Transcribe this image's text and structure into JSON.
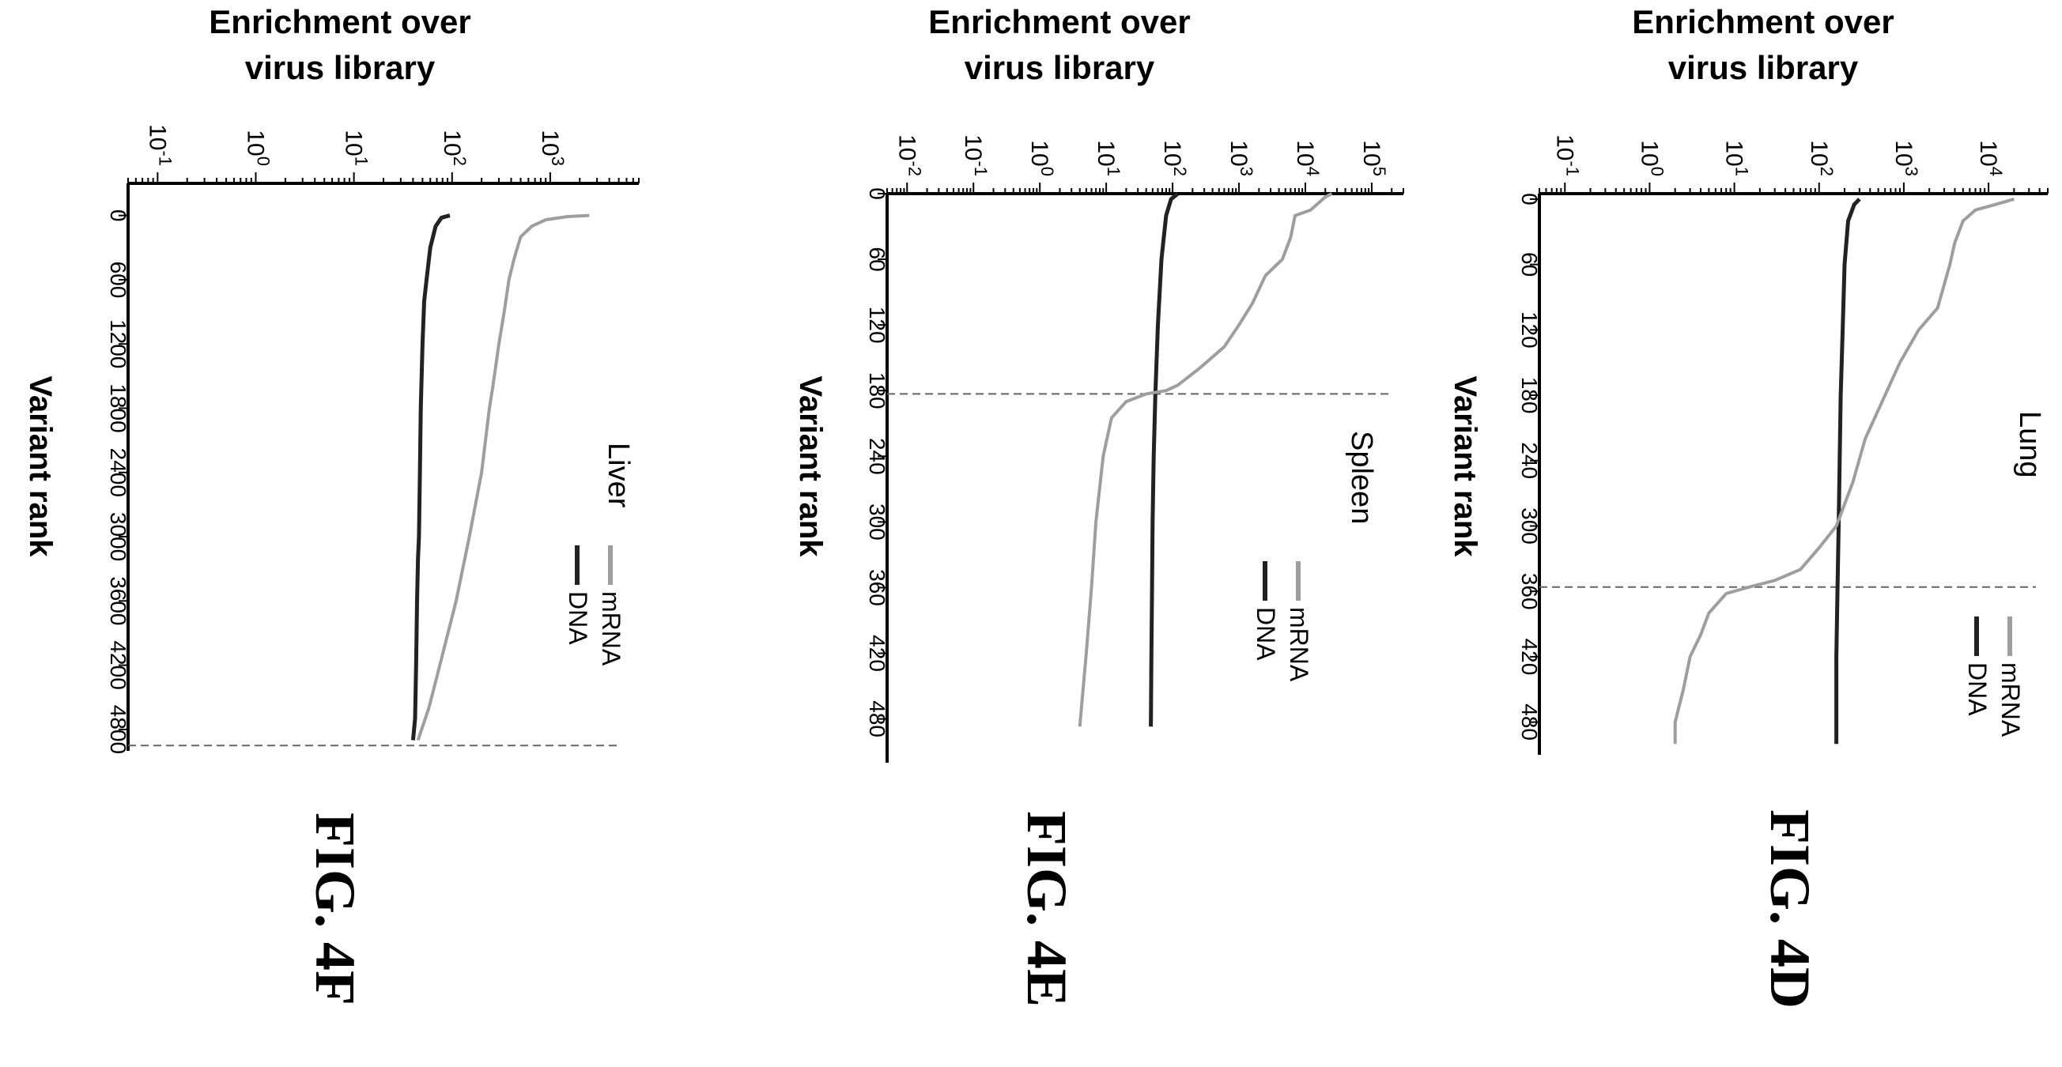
{
  "chart_data": [
    {
      "type": "line",
      "figure_label": "FIG. 4F",
      "panel_label": "Liver",
      "ylabel": "Enrichment over virus library",
      "xlabel": "Variant rank",
      "y_scale": "log",
      "ylim": [
        0.05,
        8000
      ],
      "y_ticks": [
        {
          "value": 0.1,
          "base": "10",
          "exp": "-1"
        },
        {
          "value": 1,
          "base": "10",
          "exp": "0"
        },
        {
          "value": 10,
          "base": "10",
          "exp": "1"
        },
        {
          "value": 100,
          "base": "10",
          "exp": "2"
        },
        {
          "value": 1000,
          "base": "10",
          "exp": "3"
        }
      ],
      "xlim": [
        -300,
        5000
      ],
      "x_ticks": [
        "0",
        "600",
        "1200",
        "1800",
        "2400",
        "3000",
        "3600",
        "4200",
        "4800"
      ],
      "x_tick_values": [
        0,
        600,
        1200,
        1800,
        2400,
        3000,
        3600,
        4200,
        4800
      ],
      "cutoff_rank": 4950,
      "legend": [
        "DNA",
        "mRNA"
      ],
      "legend_position": "bottom-right",
      "series": [
        {
          "name": "DNA",
          "color": "#222222",
          "x": [
            0,
            20,
            100,
            300,
            600,
            800,
            1200,
            1500,
            1800,
            2400,
            3000,
            3200,
            3600,
            4200,
            4700,
            4900
          ],
          "y": [
            95,
            78,
            68,
            60,
            55,
            52,
            50,
            49,
            48,
            47,
            46,
            45,
            44,
            43,
            42,
            40
          ]
        },
        {
          "name": "mRNA",
          "color": "#9e9e9e",
          "x": [
            0,
            10,
            40,
            100,
            200,
            400,
            600,
            900,
            1200,
            1600,
            1800,
            2400,
            3000,
            3600,
            4200,
            4600,
            4900
          ],
          "y": [
            2500,
            1500,
            900,
            650,
            500,
            430,
            380,
            340,
            300,
            260,
            240,
            200,
            150,
            110,
            75,
            58,
            45
          ]
        }
      ]
    },
    {
      "type": "line",
      "figure_label": "FIG. 4E",
      "panel_label": "Spleen",
      "ylabel": "Enrichment over virus library",
      "xlabel": "Variant rank",
      "y_scale": "log",
      "ylim": [
        0.005,
        300000
      ],
      "y_ticks": [
        {
          "value": 0.01,
          "base": "10",
          "exp": "-2"
        },
        {
          "value": 0.1,
          "base": "10",
          "exp": "-1"
        },
        {
          "value": 1,
          "base": "10",
          "exp": "0"
        },
        {
          "value": 10,
          "base": "10",
          "exp": "1"
        },
        {
          "value": 100,
          "base": "10",
          "exp": "2"
        },
        {
          "value": 1000,
          "base": "10",
          "exp": "3"
        },
        {
          "value": 10000,
          "base": "10",
          "exp": "4"
        },
        {
          "value": 100000,
          "base": "10",
          "exp": "5"
        }
      ],
      "xlim": [
        0,
        520
      ],
      "x_ticks": [
        "0",
        "60",
        "120",
        "180",
        "240",
        "300",
        "360",
        "420",
        "480"
      ],
      "x_tick_values": [
        0,
        60,
        120,
        180,
        240,
        300,
        360,
        420,
        480
      ],
      "cutoff_rank": 183,
      "legend": [
        "DNA",
        "mRNA"
      ],
      "legend_position": "bottom-right",
      "series": [
        {
          "name": "DNA",
          "color": "#222222",
          "x": [
            0,
            5,
            20,
            60,
            120,
            183,
            240,
            300,
            360,
            420,
            487
          ],
          "y": [
            120,
            95,
            80,
            68,
            60,
            55,
            52,
            50,
            49,
            48,
            47
          ]
        },
        {
          "name": "mRNA",
          "color": "#9e9e9e",
          "x": [
            0,
            3,
            15,
            20,
            40,
            60,
            75,
            100,
            120,
            140,
            160,
            175,
            180,
            183,
            190,
            205,
            240,
            300,
            360,
            420,
            487
          ],
          "y": [
            25000,
            20000,
            12000,
            7000,
            6000,
            4500,
            2500,
            1600,
            1000,
            600,
            250,
            120,
            80,
            40,
            20,
            12,
            9,
            7,
            6,
            5,
            4
          ]
        }
      ]
    },
    {
      "type": "line",
      "figure_label": "FIG. 4D",
      "panel_label": "Lung",
      "ylabel": "Enrichment over virus library",
      "xlabel": "Variant rank",
      "y_scale": "log",
      "ylim": [
        0.05,
        50000
      ],
      "y_ticks": [
        {
          "value": 0.1,
          "base": "10",
          "exp": "-1"
        },
        {
          "value": 1,
          "base": "10",
          "exp": "0"
        },
        {
          "value": 10,
          "base": "10",
          "exp": "1"
        },
        {
          "value": 100,
          "base": "10",
          "exp": "2"
        },
        {
          "value": 1000,
          "base": "10",
          "exp": "3"
        },
        {
          "value": 10000,
          "base": "10",
          "exp": "4"
        }
      ],
      "xlim": [
        -5,
        510
      ],
      "x_ticks": [
        "0",
        "60",
        "120",
        "180",
        "240",
        "300",
        "360",
        "420",
        "480"
      ],
      "x_tick_values": [
        0,
        60,
        120,
        180,
        240,
        300,
        360,
        420,
        480
      ],
      "cutoff_rank": 356,
      "legend": [
        "DNA",
        "mRNA"
      ],
      "legend_position": "bottom-right",
      "series": [
        {
          "name": "DNA",
          "color": "#222222",
          "x": [
            0,
            5,
            20,
            60,
            120,
            180,
            240,
            300,
            356,
            420,
            500
          ],
          "y": [
            300,
            260,
            220,
            200,
            190,
            180,
            175,
            170,
            165,
            160,
            160
          ]
        },
        {
          "name": "mRNA",
          "color": "#9e9e9e",
          "x": [
            0,
            5,
            10,
            20,
            40,
            60,
            100,
            120,
            150,
            180,
            220,
            260,
            300,
            320,
            340,
            350,
            356,
            362,
            380,
            400,
            420,
            450,
            480,
            500
          ],
          "y": [
            20000,
            12000,
            7000,
            5000,
            4000,
            3500,
            2500,
            1500,
            900,
            600,
            350,
            250,
            160,
            100,
            60,
            30,
            15,
            8,
            5,
            4,
            3,
            2.5,
            2,
            2
          ]
        }
      ]
    }
  ]
}
